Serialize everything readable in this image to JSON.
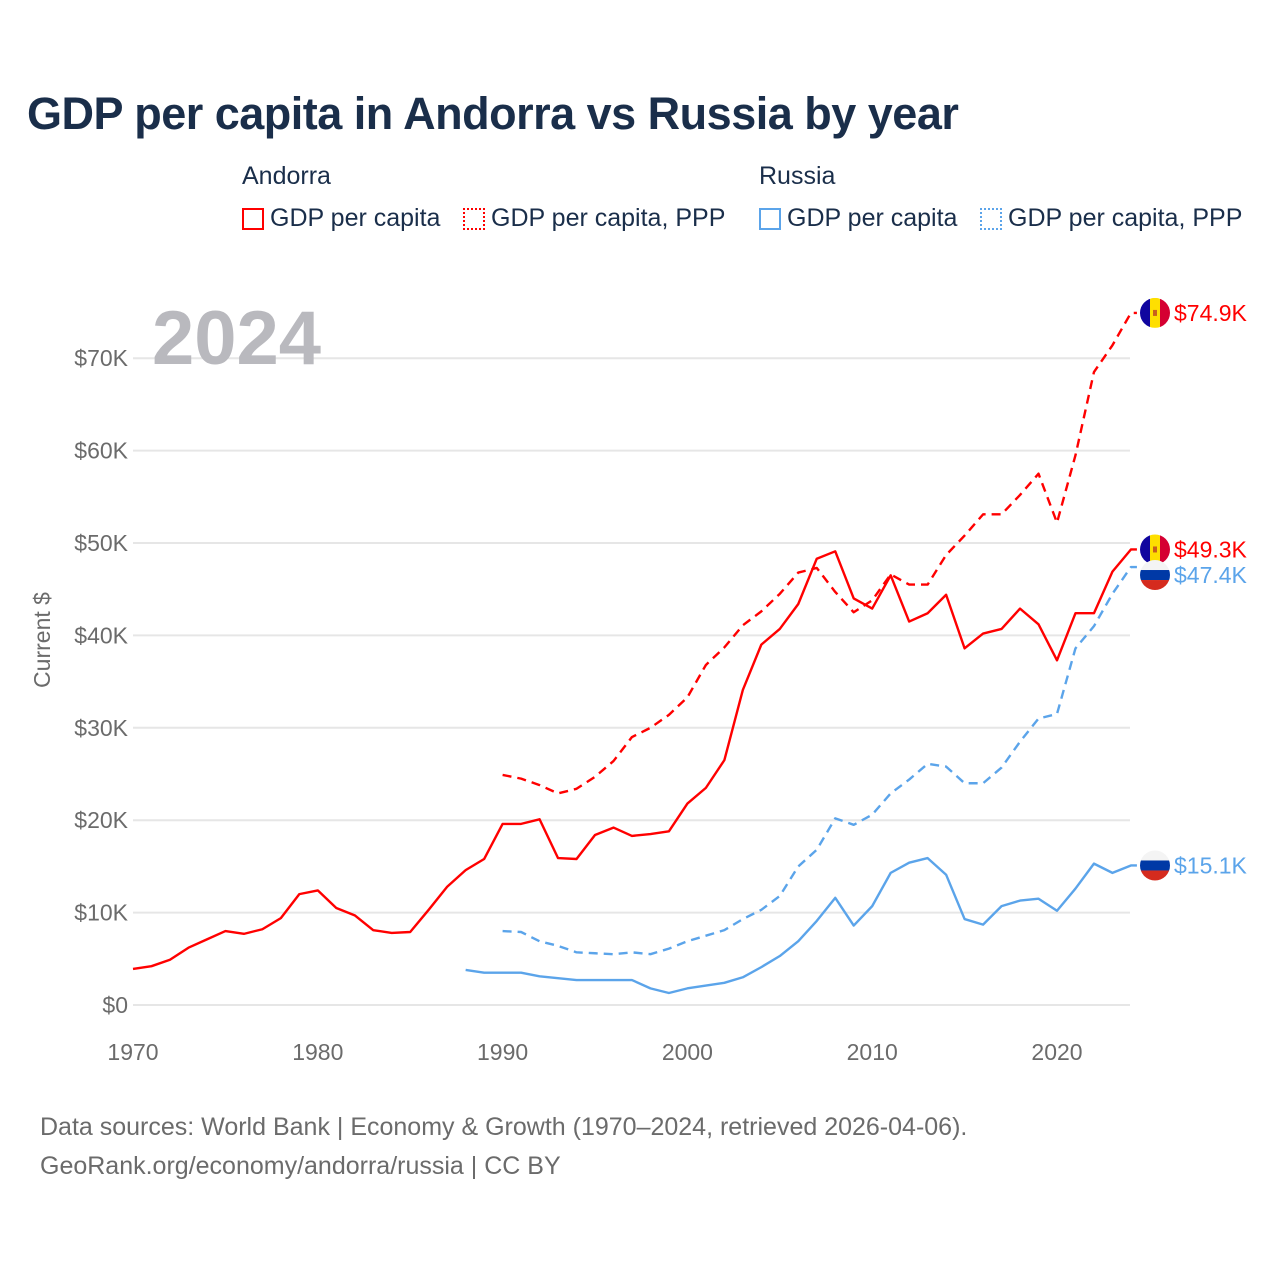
{
  "title": "GDP per capita in Andorra vs Russia by year",
  "year_label": "2024",
  "legend": [
    {
      "group": "Andorra",
      "items": [
        {
          "label": "GDP per capita",
          "color": "#ff0000",
          "style": "solid"
        },
        {
          "label": "GDP per capita, PPP",
          "color": "#ff0000",
          "style": "dotted"
        }
      ]
    },
    {
      "group": "Russia",
      "items": [
        {
          "label": "GDP per capita",
          "color": "#5ba4ea",
          "style": "solid"
        },
        {
          "label": "GDP per capita, PPP",
          "color": "#5ba4ea",
          "style": "dotted"
        }
      ]
    }
  ],
  "source_line1": "Data sources: World Bank | Economy & Growth (1970–2024, retrieved 2026-04-06).",
  "source_line2": "GeoRank.org/economy/andorra/russia | CC BY",
  "chart_data": {
    "type": "line",
    "title": "GDP per capita in Andorra vs Russia by year",
    "xlabel": "",
    "ylabel": "Current $",
    "xlim": [
      1970,
      2024
    ],
    "ylim": [
      0,
      75000
    ],
    "x_ticks": [
      1970,
      1980,
      1990,
      2000,
      2010,
      2020
    ],
    "y_ticks": [
      0,
      10000,
      20000,
      30000,
      40000,
      50000,
      60000,
      70000
    ],
    "y_tick_labels": [
      "$0",
      "$10K",
      "$20K",
      "$30K",
      "$40K",
      "$50K",
      "$60K",
      "$70K"
    ],
    "grid": true,
    "legend_position": "top",
    "series": [
      {
        "name": "Andorra GDP per capita",
        "country": "andorra",
        "color": "#ff0000",
        "dash": false,
        "end_label": "$49.3K",
        "start_year": 1970,
        "values": [
          3.9,
          4.2,
          4.9,
          6.2,
          7.1,
          8.0,
          7.7,
          8.2,
          9.4,
          12.0,
          12.4,
          10.5,
          9.7,
          8.1,
          7.8,
          7.9,
          10.3,
          12.8,
          14.6,
          15.8,
          19.6,
          19.6,
          20.1,
          15.9,
          15.8,
          18.4,
          19.2,
          18.3,
          18.5,
          18.8,
          21.8,
          23.5,
          26.5,
          34.1,
          39.0,
          40.7,
          43.4,
          48.3,
          49.1,
          44.0,
          42.9,
          46.5,
          41.5,
          42.4,
          44.4,
          38.6,
          40.2,
          40.7,
          42.9,
          41.2,
          37.3,
          42.4,
          42.4,
          46.9,
          49.3
        ]
      },
      {
        "name": "Andorra GDP per capita, PPP",
        "country": "andorra",
        "color": "#ff0000",
        "dash": true,
        "end_label": "$74.9K",
        "start_year": 1990,
        "values": [
          24.9,
          24.5,
          23.8,
          22.9,
          23.4,
          24.7,
          26.4,
          29.0,
          30.0,
          31.4,
          33.3,
          36.8,
          38.7,
          41.1,
          42.6,
          44.5,
          46.8,
          47.3,
          44.7,
          42.5,
          43.8,
          46.6,
          45.5,
          45.5,
          48.7,
          50.8,
          53.1,
          53.1,
          55.2,
          57.5,
          52.2,
          59.5,
          68.5,
          71.4,
          74.9
        ]
      },
      {
        "name": "Russia GDP per capita",
        "country": "russia",
        "color": "#5ba4ea",
        "dash": false,
        "end_label": "$15.1K",
        "start_year": 1988,
        "values": [
          3.8,
          3.5,
          3.5,
          3.5,
          3.1,
          2.9,
          2.7,
          2.7,
          2.7,
          2.7,
          1.8,
          1.3,
          1.8,
          2.1,
          2.4,
          3.0,
          4.1,
          5.3,
          6.9,
          9.1,
          11.6,
          8.6,
          10.7,
          14.3,
          15.4,
          15.9,
          14.1,
          9.3,
          8.7,
          10.7,
          11.3,
          11.5,
          10.2,
          12.6,
          15.3,
          14.3,
          15.1
        ]
      },
      {
        "name": "Russia GDP per capita, PPP",
        "country": "russia",
        "color": "#5ba4ea",
        "dash": true,
        "end_label": "$47.4K",
        "start_year": 1990,
        "values": [
          8.0,
          7.9,
          6.9,
          6.4,
          5.7,
          5.6,
          5.5,
          5.7,
          5.5,
          6.1,
          6.9,
          7.5,
          8.1,
          9.3,
          10.3,
          11.8,
          15.0,
          16.8,
          20.2,
          19.5,
          20.6,
          22.9,
          24.4,
          26.1,
          25.8,
          24.0,
          24.0,
          25.7,
          28.5,
          31.0,
          31.5,
          38.6,
          41.0,
          44.5,
          47.4
        ]
      }
    ],
    "value_unit": "thousand USD"
  }
}
